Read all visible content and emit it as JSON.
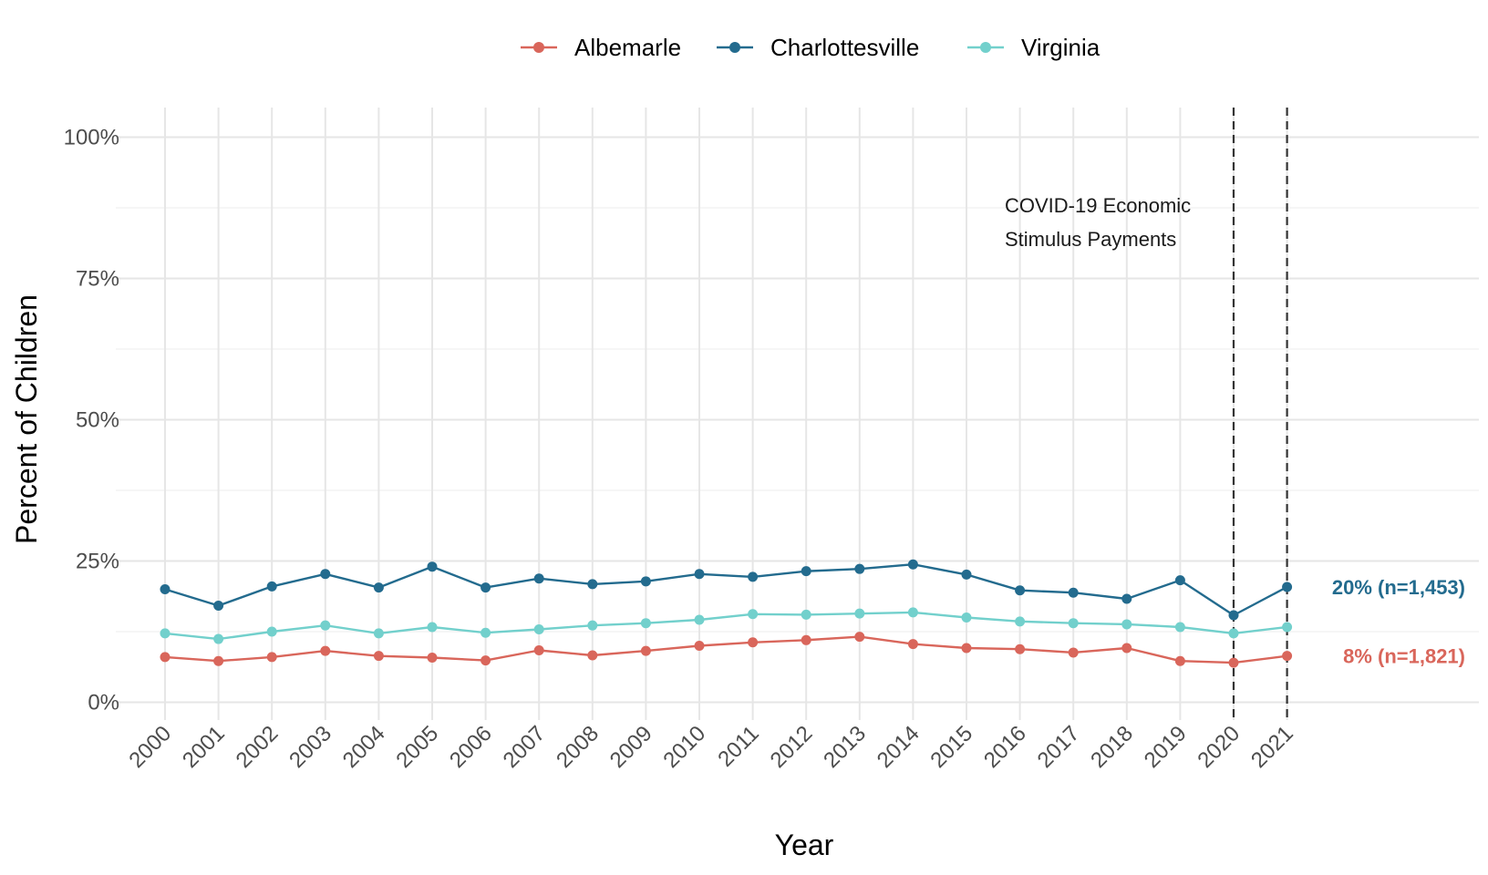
{
  "chart_data": {
    "type": "line",
    "title": "",
    "xlabel": "Year",
    "ylabel": "Percent of Children",
    "x": [
      "2000",
      "2001",
      "2002",
      "2003",
      "2004",
      "2005",
      "2006",
      "2007",
      "2008",
      "2009",
      "2010",
      "2011",
      "2012",
      "2013",
      "2014",
      "2015",
      "2016",
      "2017",
      "2018",
      "2019",
      "2020",
      "2021"
    ],
    "ylim": [
      0,
      100
    ],
    "yticks": [
      "0%",
      "25%",
      "50%",
      "75%",
      "100%"
    ],
    "ytick_values": [
      0,
      25,
      50,
      75,
      100
    ],
    "legend_position": "top",
    "series": [
      {
        "name": "Albemarle",
        "color": "#D9665B",
        "values": [
          8.0,
          7.3,
          8.0,
          9.1,
          8.2,
          7.9,
          7.4,
          9.2,
          8.3,
          9.1,
          10.0,
          10.6,
          11.0,
          11.6,
          10.3,
          9.6,
          9.4,
          8.8,
          9.6,
          7.3,
          7.0,
          8.2
        ]
      },
      {
        "name": "Charlottesville",
        "color": "#236B8E",
        "values": [
          20.0,
          17.1,
          20.5,
          22.7,
          20.3,
          24.0,
          20.3,
          21.9,
          20.9,
          21.4,
          22.7,
          22.2,
          23.2,
          23.6,
          24.4,
          22.6,
          19.8,
          19.4,
          18.3,
          21.6,
          15.4,
          20.4
        ]
      },
      {
        "name": "Virginia",
        "color": "#72D0CC",
        "values": [
          12.2,
          11.2,
          12.5,
          13.6,
          12.2,
          13.3,
          12.3,
          12.9,
          13.6,
          14.0,
          14.6,
          15.6,
          15.5,
          15.7,
          15.9,
          15.0,
          14.3,
          14.0,
          13.8,
          13.3,
          12.2,
          13.3
        ]
      }
    ],
    "vlines": [
      "2020",
      "2021"
    ],
    "annotation": {
      "line1": "COVID-19 Economic",
      "line2": "Stimulus Payments"
    },
    "end_labels": [
      {
        "series": "Charlottesville",
        "text": "20% (n=1,453)",
        "color": "#236B8E"
      },
      {
        "series": "Albemarle",
        "text": "8% (n=1,821)",
        "color": "#D9665B"
      }
    ]
  }
}
